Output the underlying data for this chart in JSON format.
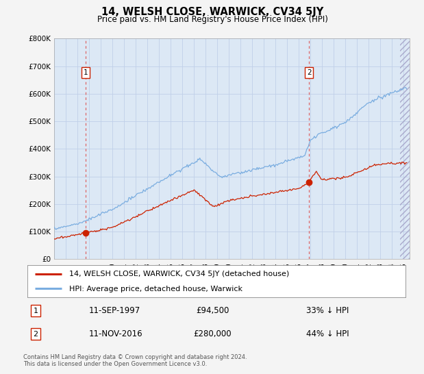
{
  "title": "14, WELSH CLOSE, WARWICK, CV34 5JY",
  "subtitle": "Price paid vs. HM Land Registry's House Price Index (HPI)",
  "plot_bg_color": "#dce8f5",
  "grid_color": "#c0d0e8",
  "legend_label_red": "14, WELSH CLOSE, WARWICK, CV34 5JY (detached house)",
  "legend_label_blue": "HPI: Average price, detached house, Warwick",
  "annotation1_date": "11-SEP-1997",
  "annotation1_price": "£94,500",
  "annotation1_hpi": "33% ↓ HPI",
  "annotation2_date": "11-NOV-2016",
  "annotation2_price": "£280,000",
  "annotation2_hpi": "44% ↓ HPI",
  "footnote": "Contains HM Land Registry data © Crown copyright and database right 2024.\nThis data is licensed under the Open Government Licence v3.0.",
  "sale1_year": 1997.71,
  "sale1_price": 94500,
  "sale2_year": 2016.87,
  "sale2_price": 280000,
  "vline1_year": 1997.71,
  "vline2_year": 2016.87,
  "ylim": [
    0,
    800000
  ],
  "xlim_start": 1995.0,
  "xlim_end": 2025.5,
  "yticks": [
    0,
    100000,
    200000,
    300000,
    400000,
    500000,
    600000,
    700000,
    800000
  ],
  "ytick_labels": [
    "£0",
    "£100K",
    "£200K",
    "£300K",
    "£400K",
    "£500K",
    "£600K",
    "£700K",
    "£800K"
  ],
  "xticks": [
    1995,
    1996,
    1997,
    1998,
    1999,
    2000,
    2001,
    2002,
    2003,
    2004,
    2005,
    2006,
    2007,
    2008,
    2009,
    2010,
    2011,
    2012,
    2013,
    2014,
    2015,
    2016,
    2017,
    2018,
    2019,
    2020,
    2021,
    2022,
    2023,
    2024,
    2025
  ],
  "red_color": "#cc2200",
  "blue_color": "#7aade0",
  "vline_color": "#dd6666",
  "fig_bg": "#f4f4f4",
  "white": "#ffffff"
}
